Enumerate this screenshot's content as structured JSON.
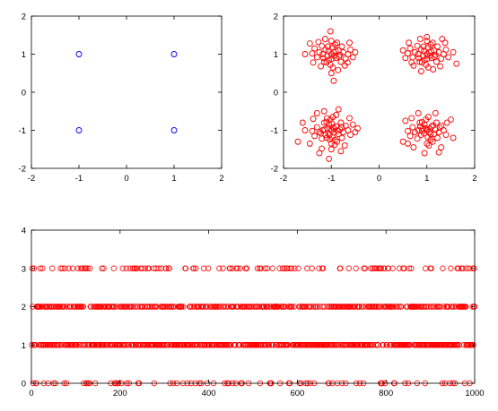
{
  "chart_data": [
    {
      "type": "scatter",
      "title": "",
      "xlabel": "",
      "ylabel": "",
      "xlim": [
        -2,
        2
      ],
      "ylim": [
        -2,
        2
      ],
      "xticks": [
        "-2",
        "-1",
        "0",
        "1",
        "2"
      ],
      "yticks": [
        "-2",
        "-1",
        "0",
        "1",
        "2"
      ],
      "grid": false,
      "marker": "circle",
      "series": [
        {
          "color": "#0000ff",
          "points": [
            [
              -1,
              1
            ],
            [
              1,
              1
            ],
            [
              -1,
              -1
            ],
            [
              1,
              -1
            ]
          ]
        }
      ]
    },
    {
      "type": "scatter",
      "title": "",
      "xlabel": "",
      "ylabel": "",
      "xlim": [
        -2,
        2
      ],
      "ylim": [
        -2,
        2
      ],
      "xticks": [
        "-2",
        "-1",
        "0",
        "1",
        "2"
      ],
      "yticks": [
        "-2",
        "-1",
        "0",
        "1",
        "2"
      ],
      "grid": false,
      "marker": "circle",
      "series": [
        {
          "color": "#ff0000",
          "points": [
            [
              -1.0,
              1.0
            ],
            [
              -0.95,
              1.05
            ],
            [
              -1.08,
              0.95
            ],
            [
              -0.9,
              0.9
            ],
            [
              -1.12,
              1.12
            ],
            [
              -0.85,
              1.1
            ],
            [
              -1.05,
              0.85
            ],
            [
              -0.98,
              1.18
            ],
            [
              -1.18,
              1.0
            ],
            [
              -0.82,
              0.98
            ],
            [
              -1.25,
              1.05
            ],
            [
              -0.75,
              1.05
            ],
            [
              -1.1,
              0.78
            ],
            [
              -0.92,
              1.25
            ],
            [
              -1.3,
              0.92
            ],
            [
              -0.7,
              0.88
            ],
            [
              -1.02,
              0.72
            ],
            [
              -0.88,
              1.3
            ],
            [
              -1.2,
              1.22
            ],
            [
              -0.78,
              1.2
            ],
            [
              -1.35,
              1.15
            ],
            [
              -0.65,
              1.0
            ],
            [
              -0.97,
              0.65
            ],
            [
              -1.15,
              0.8
            ],
            [
              -0.8,
              0.8
            ],
            [
              -1.0,
              1.35
            ],
            [
              -1.4,
              1.02
            ],
            [
              -0.6,
              1.12
            ],
            [
              -1.06,
              1.08
            ],
            [
              -0.94,
              0.96
            ],
            [
              -1.02,
              1.6
            ],
            [
              -0.55,
              0.92
            ],
            [
              -1.55,
              1.0
            ],
            [
              -0.95,
              0.3
            ],
            [
              -1.38,
              0.78
            ],
            [
              -0.62,
              1.3
            ],
            [
              -1.22,
              0.68
            ],
            [
              -0.72,
              0.7
            ],
            [
              -1.45,
              1.28
            ],
            [
              -0.5,
              1.05
            ],
            [
              -1.13,
              1.4
            ],
            [
              -0.86,
              0.58
            ],
            [
              -1.27,
              1.32
            ],
            [
              -0.66,
              0.78
            ],
            [
              -0.99,
              0.88
            ],
            [
              -1.07,
              1.2
            ],
            [
              -0.91,
              1.08
            ],
            [
              -1.17,
              0.9
            ],
            [
              -0.84,
              0.93
            ],
            [
              -1.0,
              0.5
            ],
            [
              1.0,
              1.0
            ],
            [
              1.05,
              1.05
            ],
            [
              0.92,
              0.95
            ],
            [
              1.1,
              0.9
            ],
            [
              0.88,
              1.12
            ],
            [
              1.15,
              1.1
            ],
            [
              0.95,
              0.85
            ],
            [
              1.02,
              1.18
            ],
            [
              0.82,
              1.0
            ],
            [
              1.18,
              0.98
            ],
            [
              0.75,
              1.05
            ],
            [
              1.25,
              1.05
            ],
            [
              0.9,
              0.78
            ],
            [
              1.08,
              1.25
            ],
            [
              0.7,
              0.92
            ],
            [
              1.3,
              0.88
            ],
            [
              0.98,
              0.72
            ],
            [
              1.12,
              1.3
            ],
            [
              0.8,
              1.22
            ],
            [
              1.22,
              1.2
            ],
            [
              0.65,
              1.15
            ],
            [
              1.35,
              1.0
            ],
            [
              1.03,
              0.65
            ],
            [
              0.85,
              0.8
            ],
            [
              1.2,
              0.8
            ],
            [
              1.0,
              1.35
            ],
            [
              0.6,
              1.02
            ],
            [
              1.4,
              1.12
            ],
            [
              0.94,
              1.08
            ],
            [
              1.06,
              0.96
            ],
            [
              0.55,
              0.9
            ],
            [
              1.45,
              0.92
            ],
            [
              1.0,
              1.45
            ],
            [
              0.88,
              0.55
            ],
            [
              1.62,
              0.75
            ],
            [
              0.62,
              1.3
            ],
            [
              1.38,
              1.3
            ],
            [
              0.72,
              0.7
            ],
            [
              1.28,
              0.68
            ],
            [
              0.5,
              1.1
            ],
            [
              1.55,
              1.05
            ],
            [
              1.13,
              0.6
            ],
            [
              0.86,
              1.4
            ],
            [
              1.32,
              1.4
            ],
            [
              0.68,
              0.78
            ],
            [
              1.01,
              0.88
            ],
            [
              0.93,
              1.2
            ],
            [
              1.09,
              1.08
            ],
            [
              0.83,
              0.9
            ],
            [
              1.16,
              0.93
            ],
            [
              -1.0,
              -1.0
            ],
            [
              -0.95,
              -1.05
            ],
            [
              -1.08,
              -0.95
            ],
            [
              -0.9,
              -0.9
            ],
            [
              -1.12,
              -1.12
            ],
            [
              -0.85,
              -1.1
            ],
            [
              -1.05,
              -0.85
            ],
            [
              -0.98,
              -1.18
            ],
            [
              -1.18,
              -1.0
            ],
            [
              -0.82,
              -0.98
            ],
            [
              -1.25,
              -1.05
            ],
            [
              -0.75,
              -1.05
            ],
            [
              -1.1,
              -0.78
            ],
            [
              -0.92,
              -1.25
            ],
            [
              -1.3,
              -0.92
            ],
            [
              -0.7,
              -0.88
            ],
            [
              -1.02,
              -0.72
            ],
            [
              -0.88,
              -1.3
            ],
            [
              -1.2,
              -1.22
            ],
            [
              -0.78,
              -1.2
            ],
            [
              -1.35,
              -1.15
            ],
            [
              -0.65,
              -1.0
            ],
            [
              -0.97,
              -0.65
            ],
            [
              -1.15,
              -0.8
            ],
            [
              -0.8,
              -0.8
            ],
            [
              -1.0,
              -1.35
            ],
            [
              -1.4,
              -1.02
            ],
            [
              -0.6,
              -1.12
            ],
            [
              -1.06,
              -1.08
            ],
            [
              -0.94,
              -0.96
            ],
            [
              -1.55,
              -1.0
            ],
            [
              -0.5,
              -1.05
            ],
            [
              -1.3,
              -0.55
            ],
            [
              -0.62,
              -0.68
            ],
            [
              -1.45,
              -1.35
            ],
            [
              -0.72,
              -1.4
            ],
            [
              -1.0,
              -1.5
            ],
            [
              -0.85,
              -0.45
            ],
            [
              -1.6,
              -0.8
            ],
            [
              -1.2,
              -1.48
            ],
            [
              -1.38,
              -0.7
            ],
            [
              -0.55,
              -0.85
            ],
            [
              -1.15,
              -0.5
            ],
            [
              -0.8,
              -1.55
            ],
            [
              -1.7,
              -1.3
            ],
            [
              -0.45,
              -0.95
            ],
            [
              -1.05,
              -1.75
            ],
            [
              -1.25,
              -1.6
            ],
            [
              -0.9,
              -0.6
            ],
            [
              -1.1,
              -1.2
            ],
            [
              -0.96,
              -0.92
            ],
            [
              -1.04,
              -1.12
            ],
            [
              -0.87,
              -1.02
            ],
            [
              -1.14,
              -0.98
            ],
            [
              -0.99,
              -0.82
            ],
            [
              -1.03,
              -1.24
            ],
            [
              -0.78,
              -0.92
            ],
            [
              -1.22,
              -1.08
            ],
            [
              -0.93,
              -1.38
            ],
            [
              -1.09,
              -0.68
            ],
            [
              1.0,
              -1.0
            ],
            [
              1.05,
              -1.05
            ],
            [
              0.92,
              -0.95
            ],
            [
              1.1,
              -0.9
            ],
            [
              0.88,
              -1.12
            ],
            [
              1.15,
              -1.1
            ],
            [
              0.95,
              -0.85
            ],
            [
              1.02,
              -1.18
            ],
            [
              0.82,
              -1.0
            ],
            [
              1.18,
              -0.98
            ],
            [
              0.75,
              -1.05
            ],
            [
              1.25,
              -1.05
            ],
            [
              0.9,
              -0.78
            ],
            [
              1.08,
              -1.25
            ],
            [
              0.7,
              -0.92
            ],
            [
              1.3,
              -0.88
            ],
            [
              0.98,
              -0.72
            ],
            [
              1.12,
              -1.3
            ],
            [
              0.8,
              -1.22
            ],
            [
              1.22,
              -1.2
            ],
            [
              0.65,
              -1.15
            ],
            [
              1.35,
              -1.0
            ],
            [
              1.03,
              -0.65
            ],
            [
              0.85,
              -0.8
            ],
            [
              1.2,
              -0.8
            ],
            [
              1.0,
              -1.35
            ],
            [
              0.6,
              -1.02
            ],
            [
              1.4,
              -1.12
            ],
            [
              0.94,
              -1.08
            ],
            [
              1.06,
              -0.96
            ],
            [
              0.55,
              -0.75
            ],
            [
              1.5,
              -0.72
            ],
            [
              0.72,
              -1.45
            ],
            [
              1.3,
              -1.45
            ],
            [
              0.5,
              -1.3
            ],
            [
              1.55,
              -1.2
            ],
            [
              0.82,
              -0.55
            ],
            [
              1.18,
              -0.55
            ],
            [
              0.95,
              -1.6
            ],
            [
              0.68,
              -0.68
            ],
            [
              1.42,
              -0.8
            ],
            [
              0.6,
              -1.35
            ],
            [
              1.25,
              -1.58
            ],
            [
              0.98,
              -0.95
            ],
            [
              1.08,
              -1.1
            ],
            [
              0.9,
              -1.02
            ],
            [
              1.13,
              -0.87
            ],
            [
              0.86,
              -0.9
            ],
            [
              1.04,
              -1.4
            ],
            [
              1.27,
              -0.93
            ]
          ]
        }
      ]
    },
    {
      "type": "scatter",
      "title": "",
      "xlabel": "",
      "ylabel": "",
      "xlim": [
        0,
        1000
      ],
      "ylim": [
        0,
        4
      ],
      "xticks": [
        "0",
        "200",
        "400",
        "600",
        "800",
        "1000"
      ],
      "yticks": [
        "0",
        "1",
        "2",
        "3",
        "4"
      ],
      "grid": false,
      "marker": "circle",
      "series": [
        {
          "color": "#ff0000",
          "levels": [
            0,
            1,
            2,
            3
          ],
          "x_count": 1000,
          "symbol_sequence_seed": 7
        }
      ]
    }
  ]
}
